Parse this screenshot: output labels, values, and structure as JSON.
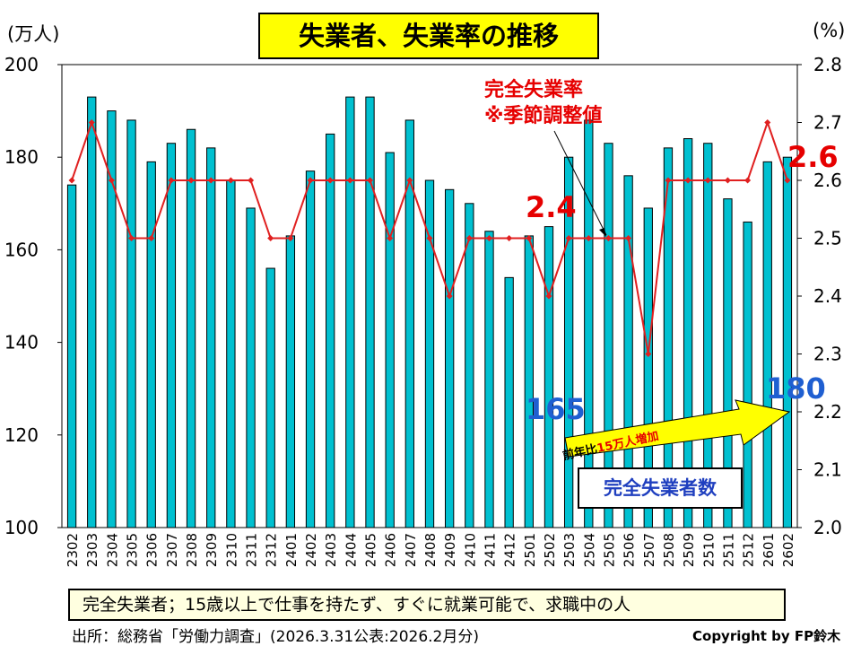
{
  "title": "失業者、失業率の推移",
  "left_unit": "(万人)",
  "right_unit": "(%)",
  "annotations": {
    "rate_label_line1": "完全失業率",
    "rate_label_line2": "※季節調整値",
    "rate_mid_value": "2.4",
    "rate_last_value": "2.6",
    "count_mid_value": "165",
    "count_last_value": "180",
    "count_box": "完全失業者数",
    "arrow_prefix": "前年比",
    "arrow_highlight": "15万人増加"
  },
  "definition": "完全失業者；15歳以上で仕事を持たず、すぐに就業可能で、求職中の人",
  "source": "出所：総務省「労働力調査」(2026.3.31公表:2026.2月分)",
  "copyright": "Copyright by FP鈴木",
  "colors": {
    "bar": "#00c0d0",
    "line": "#e02020",
    "title_bg": "#ffff00",
    "note_bg": "#ffffe0",
    "arrow": "#ffff00"
  },
  "chart_data": {
    "type": "bar",
    "title": "失業者、失業率の推移",
    "categories": [
      "2302",
      "2303",
      "2304",
      "2305",
      "2306",
      "2307",
      "2308",
      "2309",
      "2310",
      "2311",
      "2312",
      "2401",
      "2402",
      "2403",
      "2404",
      "2405",
      "2406",
      "2407",
      "2408",
      "2409",
      "2410",
      "2411",
      "2412",
      "2501",
      "2502",
      "2503",
      "2504",
      "2505",
      "2506",
      "2507",
      "2508",
      "2509",
      "2510",
      "2511",
      "2512",
      "2601",
      "2602"
    ],
    "series": [
      {
        "name": "完全失業者数",
        "type": "bar",
        "axis": "left",
        "values": [
          174,
          193,
          190,
          188,
          179,
          183,
          186,
          182,
          175,
          169,
          156,
          163,
          177,
          185,
          193,
          193,
          181,
          188,
          175,
          173,
          170,
          164,
          154,
          163,
          165,
          180,
          188,
          183,
          176,
          169,
          182,
          184,
          183,
          171,
          166,
          179,
          180
        ]
      },
      {
        "name": "完全失業率",
        "type": "line",
        "axis": "right",
        "values": [
          2.6,
          2.7,
          2.6,
          2.5,
          2.5,
          2.6,
          2.6,
          2.6,
          2.6,
          2.6,
          2.5,
          2.5,
          2.6,
          2.6,
          2.6,
          2.6,
          2.5,
          2.6,
          2.5,
          2.4,
          2.5,
          2.5,
          2.5,
          2.5,
          2.4,
          2.5,
          2.5,
          2.5,
          2.5,
          2.3,
          2.6,
          2.6,
          2.6,
          2.6,
          2.6,
          2.7,
          2.6
        ]
      }
    ],
    "ylim_left": [
      100,
      200
    ],
    "yticks_left": [
      "100",
      "120",
      "140",
      "160",
      "180",
      "200"
    ],
    "ylim_right": [
      2.0,
      2.8
    ],
    "yticks_right": [
      "2.0",
      "2.1",
      "2.2",
      "2.3",
      "2.4",
      "2.5",
      "2.6",
      "2.7",
      "2.8"
    ],
    "grid": false
  }
}
